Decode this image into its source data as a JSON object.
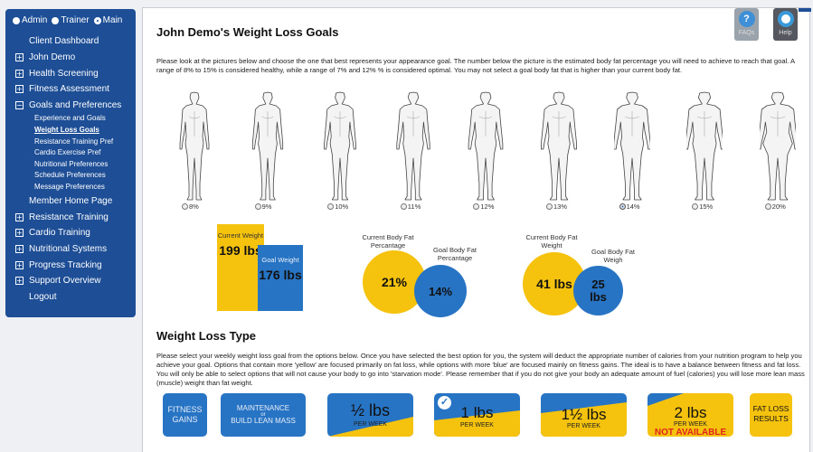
{
  "roles": [
    {
      "label": "Admin",
      "checked": false
    },
    {
      "label": "Trainer",
      "checked": false
    },
    {
      "label": "Main",
      "checked": true
    }
  ],
  "nav": {
    "client_dashboard": "Client Dashboard",
    "john_demo": "John Demo",
    "health_screening": "Health Screening",
    "fitness_assessment": "Fitness Assessment",
    "goals_preferences": "Goals and Preferences",
    "sub": {
      "experience": "Experience and Goals",
      "weight_loss": "Weight Loss Goals",
      "resistance_pref": "Resistance Training Pref",
      "cardio_pref": "Cardio Exercise Pref",
      "nutritional_pref": "Nutritional Preferences",
      "schedule_pref": "Schedule Preferences",
      "message_pref": "Message Preferences"
    },
    "member_home": "Member Home Page",
    "resistance_training": "Resistance Training",
    "cardio_training": "Cardio Training",
    "nutritional_systems": "Nutritional Systems",
    "progress_tracking": "Progress Tracking",
    "support_overview": "Support Overview",
    "logout": "Logout",
    "expand_symbol": "+",
    "collapse_symbol": "−"
  },
  "header": {
    "title": "John Demo's Weight Loss Goals",
    "faq": "FAQs",
    "help": "Help",
    "faq_glyph": "?"
  },
  "intro": "Please look at the pictures below and choose the one that best represents your appearance goal. The number below the picture is the estimated body fat percentage you will need to achieve to reach that goal. A range of 8% to 15% is considered healthy, while a range of 7% and 12% % is considered optimal. You may not select a goal body fat that is higher than your current body fat.",
  "body_fat_options": [
    {
      "label": "8%",
      "selected": false
    },
    {
      "label": "9%",
      "selected": false
    },
    {
      "label": "10%",
      "selected": false
    },
    {
      "label": "11%",
      "selected": false
    },
    {
      "label": "12%",
      "selected": false
    },
    {
      "label": "13%",
      "selected": false
    },
    {
      "label": "14%",
      "selected": true
    },
    {
      "label": "15%",
      "selected": false
    },
    {
      "label": "20%",
      "selected": false
    }
  ],
  "weight": {
    "current_label": "Current Weight",
    "current_value": "199 lbs",
    "goal_label": "Goal Weight",
    "goal_value": "176 lbs"
  },
  "body_fat": {
    "current_label": "Current Body Fat Percantage",
    "current_value": "21%",
    "goal_label": "Goal Body Fat Percantage",
    "goal_value": "14%"
  },
  "fat_weight": {
    "current_label": "Current Body Fat Weight",
    "current_value": "41 lbs",
    "goal_label": "Goal Body Fat Weigh",
    "goal_value": "25 lbs"
  },
  "weight_loss_type": {
    "title": "Weight Loss Type",
    "text": "Please select your weekly weight loss goal from the options below. Once you have selected the best option for you, the system will deduct the appropriate number of calories from your nutrition program to help you achieve your goal. Options that contain more 'yellow' are focused primarily on fat loss, while options with more 'blue' are focused mainly on fitness gains. The ideal is to have a balance between fitness and fat loss. You will only be able to select options that will not cause your body to go into 'starvation mode'. Please remember that if you do not give your body an adequate amount of fuel (calories) you will lose more lean mass (muscle) weight than fat weight."
  },
  "options": {
    "fitness_gains": "FITNESS GAINS",
    "maintenance_a": "MAINTENANCE",
    "maintenance_or": "or",
    "maintenance_b": "BUILD LEAN MASS",
    "half_amount": "½ lbs",
    "one_amount": "1 lbs",
    "one_half_amount": "1½ lbs",
    "two_amount": "2 lbs",
    "per_week": "PER WEEK",
    "not_available": "NOT AVAILABLE",
    "fat_loss": "FAT LOSS RESULTS",
    "check_glyph": "✓"
  },
  "colors": {
    "blue": "#2874c4",
    "yellow": "#f5c20e",
    "nav_blue": "#1d4e96",
    "red": "#e0251b"
  }
}
